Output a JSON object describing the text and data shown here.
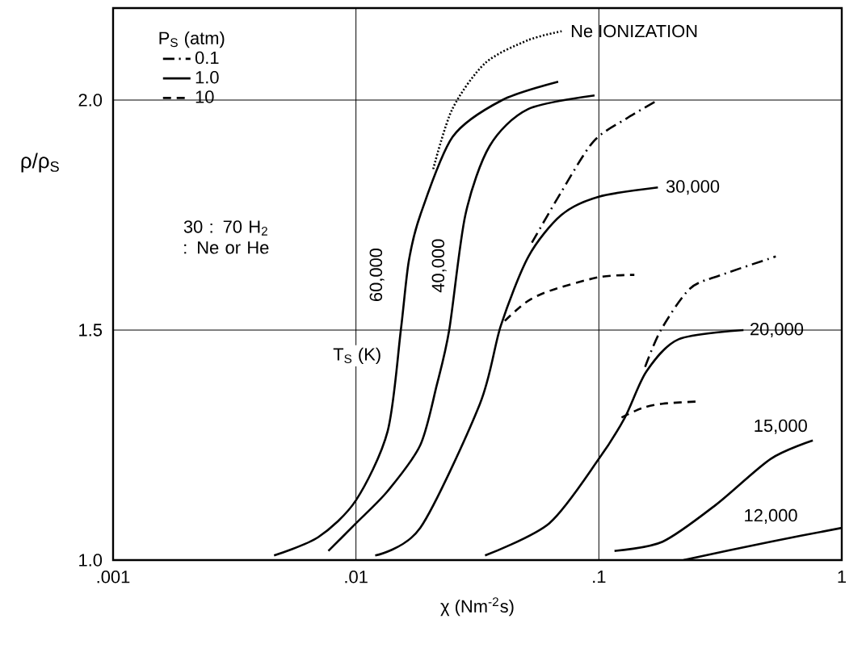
{
  "chart_data": {
    "type": "line",
    "xlabel": "χ (Nm$^{-2}$s)",
    "ylabel": "ρ/ρ$_{S}$",
    "legend_title": "P$_{S}$ (atm)",
    "legend": "top left",
    "log": "x",
    "grid": true,
    "xlim": [
      0.001,
      1
    ],
    "ylim": [
      1.0,
      2.2
    ],
    "xticks": [
      {
        "value": 0.001,
        "label": ".001"
      },
      {
        "value": 0.01,
        "label": ".01"
      },
      {
        "value": 0.1,
        "label": ".1"
      },
      {
        "value": 1,
        "label": "1"
      }
    ],
    "yticks": [
      {
        "value": 1,
        "label": "1.0"
      },
      {
        "value": 1.5,
        "label": "1.5"
      },
      {
        "value": 2,
        "label": "2.0"
      }
    ],
    "series": [
      {
        "name": "0.1",
        "color": "#000000",
        "line_style": "dashdot",
        "x": [
          0.053,
          0.07,
          0.095,
          0.13,
          0.175
        ],
        "values": [
          1.69,
          1.8,
          1.91,
          1.96,
          2.0
        ]
      },
      {
        "name": "1.0",
        "color": "#000000",
        "line_style": "solid",
        "x": [
          0.0046,
          0.007,
          0.01,
          0.0135,
          0.0153,
          0.0165,
          0.0184,
          0.025,
          0.04,
          0.068
        ],
        "values": [
          1.01,
          1.05,
          1.13,
          1.28,
          1.5,
          1.65,
          1.75,
          1.92,
          2.0,
          2.04
        ]
      },
      {
        "name": "10",
        "color": "#000000",
        "line_style": "dashed",
        "x": [
          0.041,
          0.05,
          0.0625,
          0.1,
          0.14
        ],
        "values": [
          1.52,
          1.56,
          1.585,
          1.615,
          1.62
        ]
      },
      {
        "color": "#000000",
        "line_style": "solid",
        "x": [
          0.0077,
          0.01,
          0.0135,
          0.0184,
          0.0215,
          0.0242,
          0.0282,
          0.0355,
          0.051,
          0.096
        ],
        "values": [
          1.02,
          1.08,
          1.15,
          1.25,
          1.38,
          1.5,
          1.75,
          1.9,
          1.98,
          2.01
        ]
      },
      {
        "color": "#000000",
        "line_style": "solid",
        "x": [
          0.012,
          0.0184,
          0.0324,
          0.0395,
          0.0513,
          0.07,
          0.1,
          0.175
        ],
        "values": [
          1.01,
          1.07,
          1.34,
          1.51,
          1.66,
          1.75,
          1.79,
          1.81
        ]
      },
      {
        "color": "#000000",
        "line_style": "solid",
        "x": [
          0.034,
          0.0625,
          0.1,
          0.128,
          0.157,
          0.213,
          0.394
        ],
        "values": [
          1.01,
          1.08,
          1.22,
          1.31,
          1.41,
          1.48,
          1.5
        ]
      },
      {
        "color": "#000000",
        "line_style": "solid",
        "x": [
          0.116,
          0.183,
          0.303,
          0.51,
          0.76
        ],
        "values": [
          1.02,
          1.04,
          1.12,
          1.22,
          1.26
        ]
      },
      {
        "color": "#000000",
        "line_style": "solid",
        "x": [
          0.223,
          0.51,
          1.0
        ],
        "values": [
          1.0,
          1.04,
          1.07
        ]
      },
      {
        "color": "#000000",
        "line_style": "dashdot",
        "x": [
          0.155,
          0.18,
          0.237,
          0.32,
          0.535
        ],
        "values": [
          1.42,
          1.5,
          1.59,
          1.62,
          1.66
        ]
      },
      {
        "color": "#000000",
        "line_style": "dashed",
        "x": [
          0.124,
          0.15,
          0.183,
          0.26
        ],
        "values": [
          1.31,
          1.33,
          1.34,
          1.345
        ]
      },
      {
        "color": "#000000",
        "line_style": "dotted",
        "x": [
          0.0208,
          0.0249,
          0.034,
          0.051,
          0.071
        ],
        "values": [
          1.85,
          1.98,
          2.08,
          2.13,
          2.15
        ]
      }
    ],
    "annotations": [
      {
        "text": "Ne IONIZATION",
        "x": 0.075,
        "y": 2.15
      },
      "60,000",
      "40,000",
      {
        "text": "30,000",
        "x": 0.185,
        "y": 1.81
      },
      {
        "text": "20,000",
        "x": 0.41,
        "y": 1.5
      },
      "15,000",
      "12,000",
      "T$_{S}$ (K)",
      "30 : 70 H$_{2}$ : Ne or He"
    ]
  }
}
